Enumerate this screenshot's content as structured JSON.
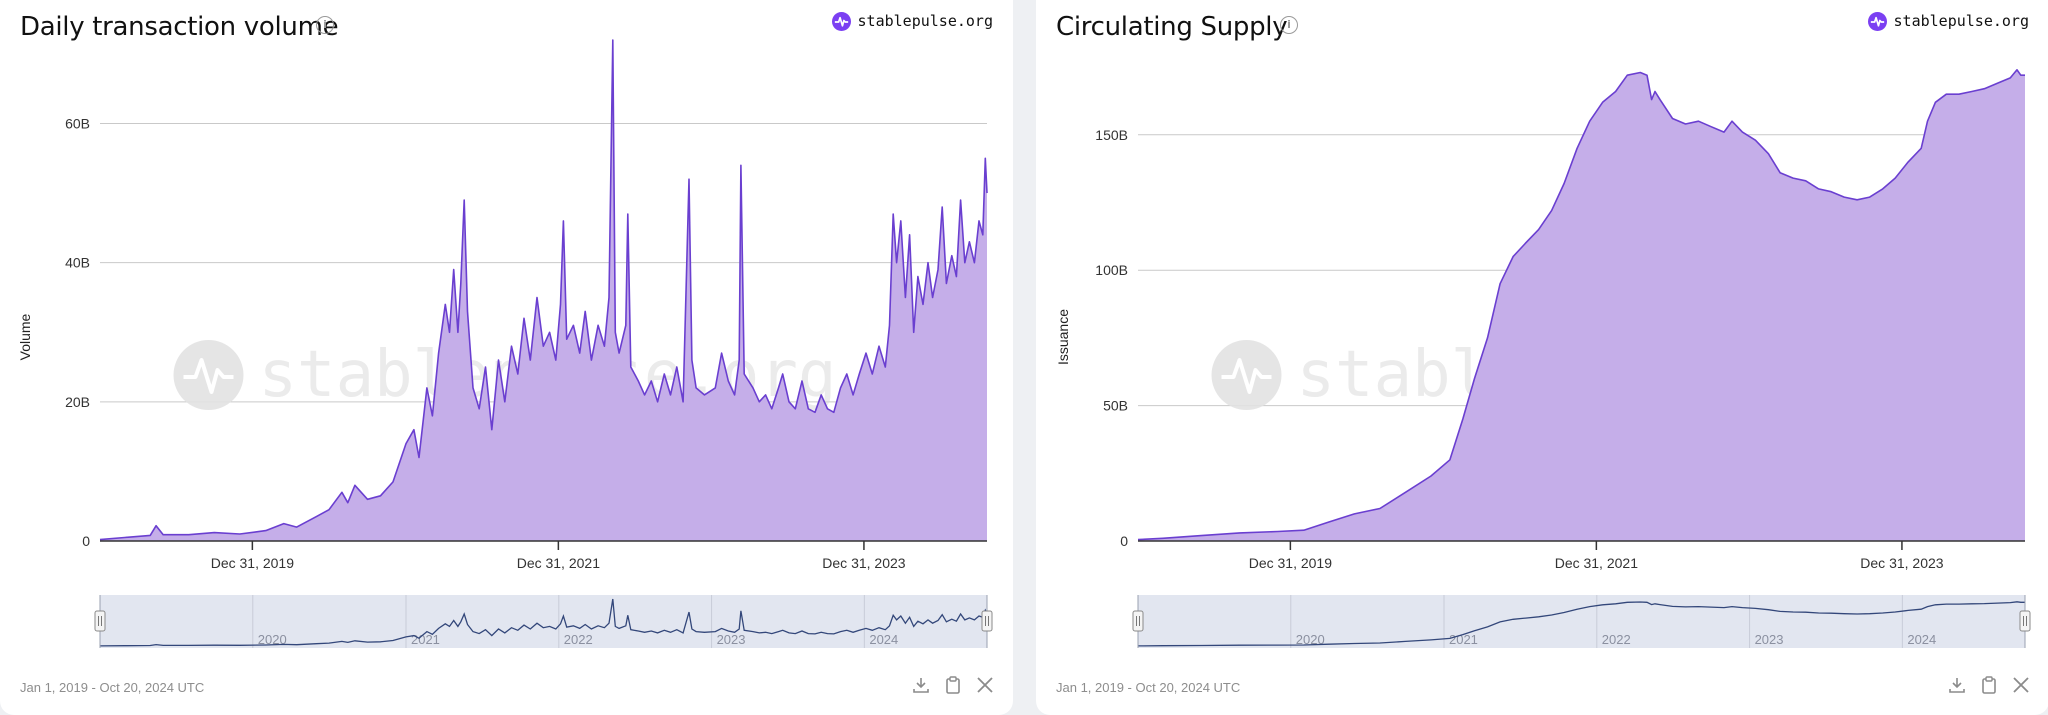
{
  "brand_label": "stablepulse.org",
  "watermark": "stablepulse.org",
  "colors": {
    "line": "#6a3fd0",
    "fill": "#c5aee9",
    "navigator_bg": "#e2e6f0",
    "navigator_line": "#33477a",
    "brand": "#7b3ff2"
  },
  "icons": {
    "info": "info-icon",
    "download": "download-icon",
    "clipboard": "clipboard-icon",
    "share": "x-share-icon"
  },
  "panels": [
    {
      "title": "Daily transaction volume",
      "date_range": "Jan 1, 2019 - Oct 20, 2024 UTC",
      "chart_data": {
        "type": "area",
        "ylabel": "Volume",
        "ylim": [
          0,
          72
        ],
        "yticks": [
          0,
          20,
          40,
          60
        ],
        "ytick_labels": [
          "0",
          "20B",
          "40B",
          "60B"
        ],
        "y_unit": "B",
        "x_range": [
          "2019-01-01",
          "2024-10-20"
        ],
        "xticks": [
          "2019-12-31",
          "2021-12-31",
          "2023-12-31"
        ],
        "xtick_labels": [
          "Dec 31, 2019",
          "Dec 31, 2021",
          "Dec 31, 2023"
        ],
        "navigator_labels": [
          "2020",
          "2021",
          "2022",
          "2023",
          "2024"
        ],
        "grid": true,
        "points": [
          [
            "2019-01-01",
            0.2
          ],
          [
            "2019-03-01",
            0.5
          ],
          [
            "2019-05-01",
            0.8
          ],
          [
            "2019-05-15",
            2.2
          ],
          [
            "2019-06-01",
            0.9
          ],
          [
            "2019-08-01",
            0.9
          ],
          [
            "2019-10-01",
            1.2
          ],
          [
            "2019-12-01",
            1.0
          ],
          [
            "2020-02-01",
            1.5
          ],
          [
            "2020-03-15",
            2.5
          ],
          [
            "2020-04-15",
            2.0
          ],
          [
            "2020-06-01",
            3.5
          ],
          [
            "2020-07-01",
            4.5
          ],
          [
            "2020-08-01",
            7.0
          ],
          [
            "2020-08-15",
            5.5
          ],
          [
            "2020-09-01",
            8.0
          ],
          [
            "2020-10-01",
            6.0
          ],
          [
            "2020-11-01",
            6.5
          ],
          [
            "2020-12-01",
            8.5
          ],
          [
            "2021-01-01",
            14.0
          ],
          [
            "2021-01-20",
            16.0
          ],
          [
            "2021-02-01",
            12.0
          ],
          [
            "2021-02-20",
            22.0
          ],
          [
            "2021-03-05",
            18.0
          ],
          [
            "2021-03-20",
            27.0
          ],
          [
            "2021-04-05",
            34.0
          ],
          [
            "2021-04-15",
            30.0
          ],
          [
            "2021-04-25",
            39.0
          ],
          [
            "2021-05-05",
            30.0
          ],
          [
            "2021-05-12",
            37.0
          ],
          [
            "2021-05-20",
            49.0
          ],
          [
            "2021-05-28",
            33.0
          ],
          [
            "2021-06-10",
            22.0
          ],
          [
            "2021-06-25",
            19.0
          ],
          [
            "2021-07-10",
            25.0
          ],
          [
            "2021-07-25",
            16.0
          ],
          [
            "2021-08-10",
            26.0
          ],
          [
            "2021-08-25",
            20.0
          ],
          [
            "2021-09-10",
            28.0
          ],
          [
            "2021-09-25",
            24.0
          ],
          [
            "2021-10-10",
            32.0
          ],
          [
            "2021-10-25",
            26.0
          ],
          [
            "2021-11-10",
            35.0
          ],
          [
            "2021-11-25",
            28.0
          ],
          [
            "2021-12-10",
            30.0
          ],
          [
            "2021-12-25",
            26.0
          ],
          [
            "2022-01-05",
            34.0
          ],
          [
            "2022-01-12",
            46.0
          ],
          [
            "2022-01-20",
            29.0
          ],
          [
            "2022-02-05",
            31.0
          ],
          [
            "2022-02-20",
            27.0
          ],
          [
            "2022-03-05",
            33.0
          ],
          [
            "2022-03-20",
            26.0
          ],
          [
            "2022-04-05",
            31.0
          ],
          [
            "2022-04-20",
            28.0
          ],
          [
            "2022-05-01",
            35.0
          ],
          [
            "2022-05-10",
            72.0
          ],
          [
            "2022-05-16",
            30.0
          ],
          [
            "2022-05-25",
            27.0
          ],
          [
            "2022-06-10",
            31.0
          ],
          [
            "2022-06-15",
            47.0
          ],
          [
            "2022-06-22",
            25.0
          ],
          [
            "2022-07-10",
            23.0
          ],
          [
            "2022-07-25",
            21.0
          ],
          [
            "2022-08-10",
            23.0
          ],
          [
            "2022-08-25",
            20.0
          ],
          [
            "2022-09-10",
            24.0
          ],
          [
            "2022-09-25",
            21.0
          ],
          [
            "2022-10-10",
            25.0
          ],
          [
            "2022-10-25",
            20.0
          ],
          [
            "2022-11-08",
            52.0
          ],
          [
            "2022-11-15",
            26.0
          ],
          [
            "2022-11-25",
            22.0
          ],
          [
            "2022-12-15",
            21.0
          ],
          [
            "2023-01-10",
            22.0
          ],
          [
            "2023-01-25",
            27.0
          ],
          [
            "2023-02-10",
            23.0
          ],
          [
            "2023-02-25",
            21.0
          ],
          [
            "2023-03-08",
            26.0
          ],
          [
            "2023-03-12",
            54.0
          ],
          [
            "2023-03-20",
            24.0
          ],
          [
            "2023-04-10",
            22.0
          ],
          [
            "2023-04-25",
            20.0
          ],
          [
            "2023-05-10",
            21.0
          ],
          [
            "2023-05-25",
            19.0
          ],
          [
            "2023-06-10",
            22.0
          ],
          [
            "2023-06-20",
            24.0
          ],
          [
            "2023-07-05",
            20.0
          ],
          [
            "2023-07-20",
            19.0
          ],
          [
            "2023-08-05",
            23.0
          ],
          [
            "2023-08-20",
            19.0
          ],
          [
            "2023-09-05",
            18.5
          ],
          [
            "2023-09-20",
            21.0
          ],
          [
            "2023-10-05",
            19.0
          ],
          [
            "2023-10-20",
            18.5
          ],
          [
            "2023-11-05",
            22.0
          ],
          [
            "2023-11-20",
            24.0
          ],
          [
            "2023-12-05",
            21.0
          ],
          [
            "2023-12-20",
            24.0
          ],
          [
            "2024-01-05",
            27.0
          ],
          [
            "2024-01-20",
            24.0
          ],
          [
            "2024-02-05",
            28.0
          ],
          [
            "2024-02-20",
            25.0
          ],
          [
            "2024-03-01",
            31.0
          ],
          [
            "2024-03-10",
            47.0
          ],
          [
            "2024-03-18",
            40.0
          ],
          [
            "2024-03-28",
            46.0
          ],
          [
            "2024-04-08",
            35.0
          ],
          [
            "2024-04-18",
            44.0
          ],
          [
            "2024-04-28",
            30.0
          ],
          [
            "2024-05-08",
            38.0
          ],
          [
            "2024-05-20",
            34.0
          ],
          [
            "2024-06-01",
            40.0
          ],
          [
            "2024-06-12",
            35.0
          ],
          [
            "2024-06-25",
            39.0
          ],
          [
            "2024-07-05",
            48.0
          ],
          [
            "2024-07-15",
            37.0
          ],
          [
            "2024-07-28",
            41.0
          ],
          [
            "2024-08-08",
            38.0
          ],
          [
            "2024-08-18",
            49.0
          ],
          [
            "2024-08-28",
            40.0
          ],
          [
            "2024-09-08",
            43.0
          ],
          [
            "2024-09-20",
            40.0
          ],
          [
            "2024-10-01",
            46.0
          ],
          [
            "2024-10-10",
            44.0
          ],
          [
            "2024-10-16",
            55.0
          ],
          [
            "2024-10-20",
            50.0
          ]
        ]
      }
    },
    {
      "title": "Circulating Supply",
      "date_range": "Jan 1, 2019 - Oct 20, 2024 UTC",
      "chart_data": {
        "type": "area",
        "ylabel": "Issuance",
        "ylim": [
          0,
          185
        ],
        "yticks": [
          0,
          50,
          100,
          150
        ],
        "ytick_labels": [
          "0",
          "50B",
          "100B",
          "150B"
        ],
        "y_unit": "B",
        "x_range": [
          "2019-01-01",
          "2024-10-20"
        ],
        "xticks": [
          "2019-12-31",
          "2021-12-31",
          "2023-12-31"
        ],
        "xtick_labels": [
          "Dec 31, 2019",
          "Dec 31, 2021",
          "Dec 31, 2023"
        ],
        "navigator_labels": [
          "2020",
          "2021",
          "2022",
          "2023",
          "2024"
        ],
        "grid": true,
        "points": [
          [
            "2019-01-01",
            0.5
          ],
          [
            "2019-03-01",
            1.0
          ],
          [
            "2019-06-01",
            2.0
          ],
          [
            "2019-09-01",
            3.0
          ],
          [
            "2019-12-01",
            3.5
          ],
          [
            "2020-02-01",
            4.0
          ],
          [
            "2020-04-01",
            7.0
          ],
          [
            "2020-06-01",
            10.0
          ],
          [
            "2020-08-01",
            12.0
          ],
          [
            "2020-10-01",
            18.0
          ],
          [
            "2020-12-01",
            24.0
          ],
          [
            "2021-01-15",
            30.0
          ],
          [
            "2021-02-15",
            45.0
          ],
          [
            "2021-03-15",
            60.0
          ],
          [
            "2021-04-15",
            75.0
          ],
          [
            "2021-05-15",
            95.0
          ],
          [
            "2021-06-15",
            105.0
          ],
          [
            "2021-07-15",
            110.0
          ],
          [
            "2021-08-15",
            115.0
          ],
          [
            "2021-09-15",
            122.0
          ],
          [
            "2021-10-15",
            132.0
          ],
          [
            "2021-11-15",
            145.0
          ],
          [
            "2021-12-15",
            155.0
          ],
          [
            "2022-01-15",
            162.0
          ],
          [
            "2022-02-15",
            166.0
          ],
          [
            "2022-03-15",
            172.0
          ],
          [
            "2022-04-15",
            173.0
          ],
          [
            "2022-05-01",
            172.0
          ],
          [
            "2022-05-12",
            163.0
          ],
          [
            "2022-05-20",
            166.0
          ],
          [
            "2022-06-01",
            163.0
          ],
          [
            "2022-07-01",
            156.0
          ],
          [
            "2022-08-01",
            154.0
          ],
          [
            "2022-09-01",
            155.0
          ],
          [
            "2022-10-01",
            153.0
          ],
          [
            "2022-11-01",
            151.0
          ],
          [
            "2022-11-20",
            155.0
          ],
          [
            "2022-12-15",
            151.0
          ],
          [
            "2023-01-15",
            148.0
          ],
          [
            "2023-02-15",
            143.0
          ],
          [
            "2023-03-15",
            136.0
          ],
          [
            "2023-04-15",
            134.0
          ],
          [
            "2023-05-15",
            133.0
          ],
          [
            "2023-06-15",
            130.0
          ],
          [
            "2023-07-15",
            129.0
          ],
          [
            "2023-08-15",
            127.0
          ],
          [
            "2023-09-15",
            126.0
          ],
          [
            "2023-10-15",
            127.0
          ],
          [
            "2023-11-15",
            130.0
          ],
          [
            "2023-12-15",
            134.0
          ],
          [
            "2024-01-15",
            140.0
          ],
          [
            "2024-02-15",
            145.0
          ],
          [
            "2024-03-01",
            155.0
          ],
          [
            "2024-03-20",
            162.0
          ],
          [
            "2024-04-15",
            165.0
          ],
          [
            "2024-05-15",
            165.0
          ],
          [
            "2024-06-15",
            166.0
          ],
          [
            "2024-07-15",
            167.0
          ],
          [
            "2024-08-15",
            169.0
          ],
          [
            "2024-09-15",
            171.0
          ],
          [
            "2024-10-01",
            174.0
          ],
          [
            "2024-10-10",
            172.0
          ],
          [
            "2024-10-20",
            172.0
          ]
        ]
      }
    }
  ]
}
